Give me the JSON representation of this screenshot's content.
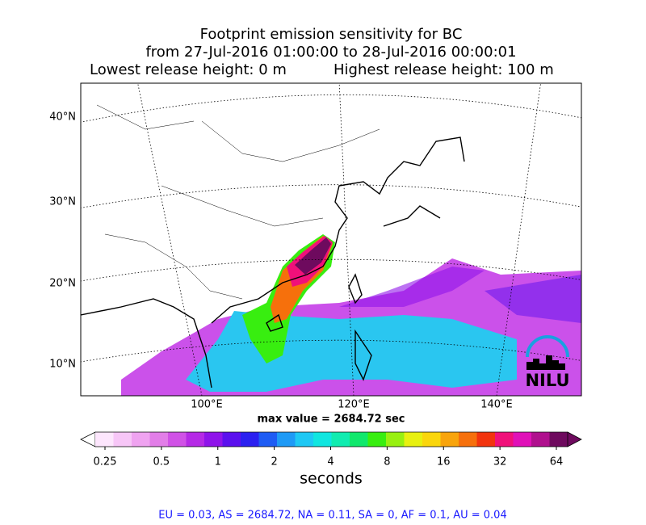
{
  "header": {
    "title": "Footprint emission sensitivity for BC",
    "period": "from 27-Jul-2016 01:00:00 to 28-Jul-2016 00:00:01",
    "lowest": "Lowest release height: 0 m",
    "highest": "Highest release height: 100 m"
  },
  "map": {
    "lat_labels": [
      "40°N",
      "30°N",
      "20°N",
      "10°N"
    ],
    "lon_labels": [
      "100°E",
      "120°E",
      "140°E"
    ],
    "max_value": "max value = 2684.72 sec",
    "logo": "NILU"
  },
  "colorbar": {
    "ticks": [
      0.25,
      0.5,
      1,
      2,
      4,
      8,
      16,
      32,
      64
    ],
    "colors": [
      "#fde6fd",
      "#f7c6f7",
      "#efa3f0",
      "#e27ee8",
      "#d052e6",
      "#b52ae6",
      "#8f14ea",
      "#5b10ee",
      "#2b20f0",
      "#1e5cf4",
      "#1e9af6",
      "#1ec8f4",
      "#10e6e0",
      "#10ecb0",
      "#10e86c",
      "#38ee10",
      "#98f010",
      "#e8f010",
      "#fad60c",
      "#f8a40c",
      "#f6700c",
      "#f2340e",
      "#f0107a",
      "#e010b8",
      "#b0108e",
      "#6e0a5e"
    ],
    "label": "seconds"
  },
  "footer": "EU = 0.03,  AS = 2684.72,  NA = 0.11,  SA = 0,  AF = 0.1,  AU = 0.04"
}
